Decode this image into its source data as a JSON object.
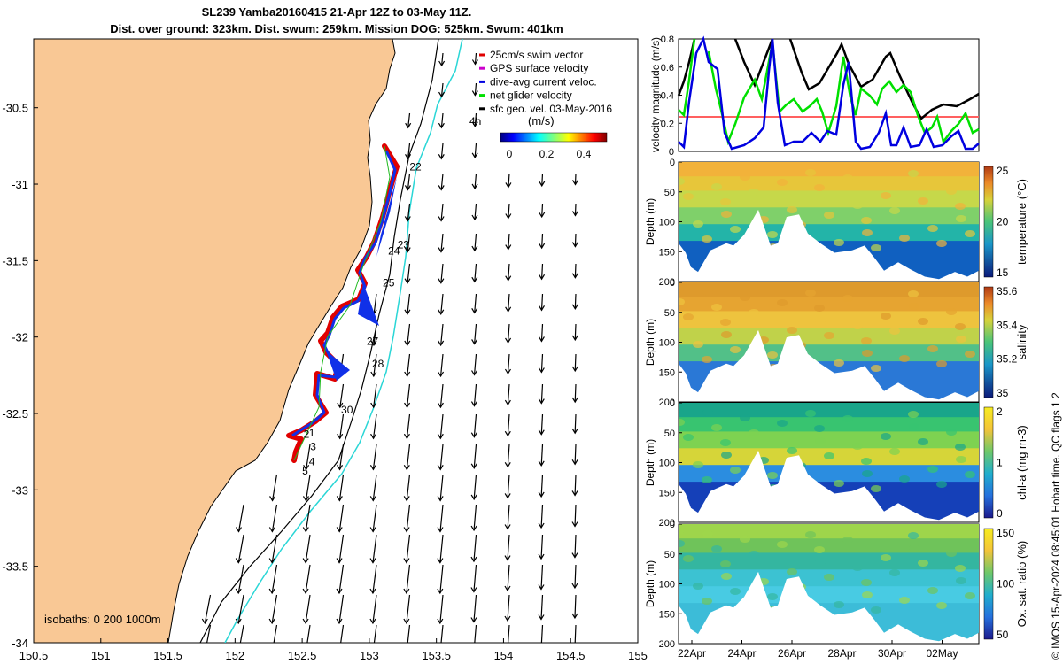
{
  "header": {
    "line1": "SL239 Yamba20160415 21-Apr 12Z to 03-May 11Z.",
    "line2": "Dist. over ground: 323km. Dist. swum: 259km. Mission DOG: 525km. Swum: 401km"
  },
  "map": {
    "lon_ticks": [
      "150.5",
      "151",
      "151.5",
      "152",
      "152.5",
      "153",
      "153.5",
      "154",
      "154.5",
      "155"
    ],
    "lat_ticks": [
      "-30.5",
      "-31",
      "-31.5",
      "-32",
      "-32.5",
      "-33",
      "-33.5",
      "-34"
    ],
    "lon_range": [
      150.5,
      155.0
    ],
    "lat_range": [
      -34.0,
      -30.05
    ],
    "legend": [
      {
        "label": "25cm/s swim vector",
        "color": "#e00000"
      },
      {
        "label": "GPS surface velocity",
        "color": "#cc00cc"
      },
      {
        "label": "dive-avg current veloc.",
        "color": "#0000e0"
      },
      {
        "label": "net glider velocity",
        "color": "#00e000"
      },
      {
        "label": "sfc geo. vel. 03-May-2016",
        "color": "#000000"
      }
    ],
    "colorbar": {
      "label": "(m/s)",
      "ticks": [
        "0",
        "0.2",
        "0.4"
      ]
    },
    "label_4h": "4h",
    "isobaths_label": "isobaths: 0   200 1000m",
    "day_labels": [
      {
        "t": "22",
        "lon": 153.3,
        "lat": -30.91
      },
      {
        "t": "23",
        "lon": 153.21,
        "lat": -31.42
      },
      {
        "t": "24",
        "lon": 153.14,
        "lat": -31.46
      },
      {
        "t": "25",
        "lon": 153.1,
        "lat": -31.67
      },
      {
        "t": "27",
        "lon": 152.98,
        "lat": -32.05
      },
      {
        "t": "28",
        "lon": 153.02,
        "lat": -32.2
      },
      {
        "t": "30",
        "lon": 152.79,
        "lat": -32.5
      },
      {
        "t": "1",
        "lon": 152.55,
        "lat": -32.65
      },
      {
        "t": "2",
        "lon": 152.51,
        "lat": -32.66
      },
      {
        "t": "3",
        "lon": 152.56,
        "lat": -32.74
      },
      {
        "t": "4",
        "lon": 152.55,
        "lat": -32.84
      },
      {
        "t": "5",
        "lon": 152.5,
        "lat": -32.9
      }
    ]
  },
  "velocity_panel": {
    "ylabel": "velocity magnitude (m/s)",
    "yticks": [
      "0",
      "0.2",
      "0.4",
      "0.6",
      "0.8"
    ]
  },
  "sections": [
    {
      "colorbar_label": "temperature (°C)",
      "ticks": [
        "15",
        "20",
        "25"
      ]
    },
    {
      "colorbar_label": "salinity",
      "ticks": [
        "35",
        "35.2",
        "35.4",
        "35.6"
      ]
    },
    {
      "colorbar_label": "chl-a (mg m-3)",
      "ticks": [
        "0",
        "1",
        "2"
      ]
    },
    {
      "colorbar_label": "Ox. sat. ratio (%)",
      "ticks": [
        "50",
        "100",
        "150"
      ]
    }
  ],
  "depth_label": "Depth (m)",
  "depth_ticks": [
    "0",
    "50",
    "100",
    "150",
    "200"
  ],
  "date_ticks": [
    "22Apr",
    "24Apr",
    "26Apr",
    "28Apr",
    "30Apr",
    "02May"
  ],
  "side_label": "salinity",
  "copyright": "© IMOS 15-Apr-2024 08:45:01 Hobart time. QC flags 1  2"
}
